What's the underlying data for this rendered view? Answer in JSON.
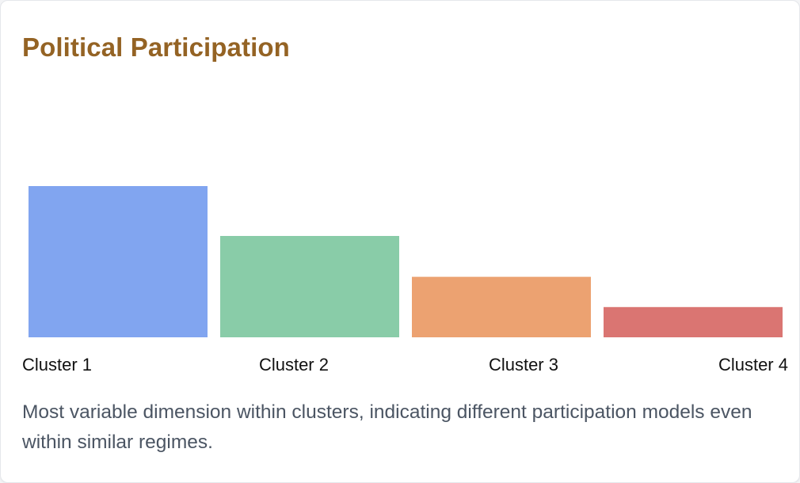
{
  "card": {
    "title": "Political Participation",
    "description": "Most variable dimension within clusters, indicating different participation models even within similar regimes."
  },
  "colors": {
    "title": "#946324",
    "text": "#4b5563"
  },
  "chart_data": {
    "type": "bar",
    "title": "Political Participation",
    "categories": [
      "Cluster 1",
      "Cluster 2",
      "Cluster 3",
      "Cluster 4"
    ],
    "values": [
      1.0,
      0.67,
      0.4,
      0.2
    ],
    "colors": [
      "#81a5f0",
      "#89cca8",
      "#eca271",
      "#da7572"
    ],
    "xlabel": "",
    "ylabel": "",
    "grid": false,
    "legend": "none"
  }
}
